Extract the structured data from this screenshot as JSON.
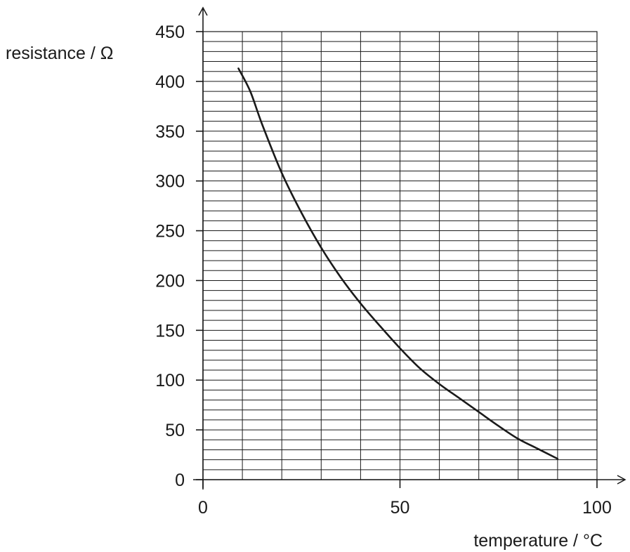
{
  "chart_data": {
    "type": "line",
    "title": "",
    "xlabel": "temperature / °C",
    "ylabel": "resistance / Ω",
    "xlim": [
      0,
      100
    ],
    "ylim": [
      0,
      450
    ],
    "x_major_ticks": [
      0,
      50,
      100
    ],
    "x_minor_step": 10,
    "y_major_ticks": [
      0,
      50,
      100,
      150,
      200,
      250,
      300,
      350,
      400,
      450
    ],
    "y_minor_step": 10,
    "grid": true,
    "series": [
      {
        "x": [
          9,
          12,
          15,
          20,
          25,
          30,
          35,
          40,
          45,
          50,
          55,
          60,
          65,
          70,
          75,
          80,
          85,
          90
        ],
        "y": [
          413,
          390,
          357,
          308,
          268,
          233,
          203,
          177,
          154,
          132,
          112,
          96,
          82,
          68,
          54,
          41,
          31,
          21
        ]
      }
    ],
    "colors": {
      "line": "#1a1a1a",
      "grid": "#1a1a1a",
      "axis": "#1a1a1a"
    }
  }
}
